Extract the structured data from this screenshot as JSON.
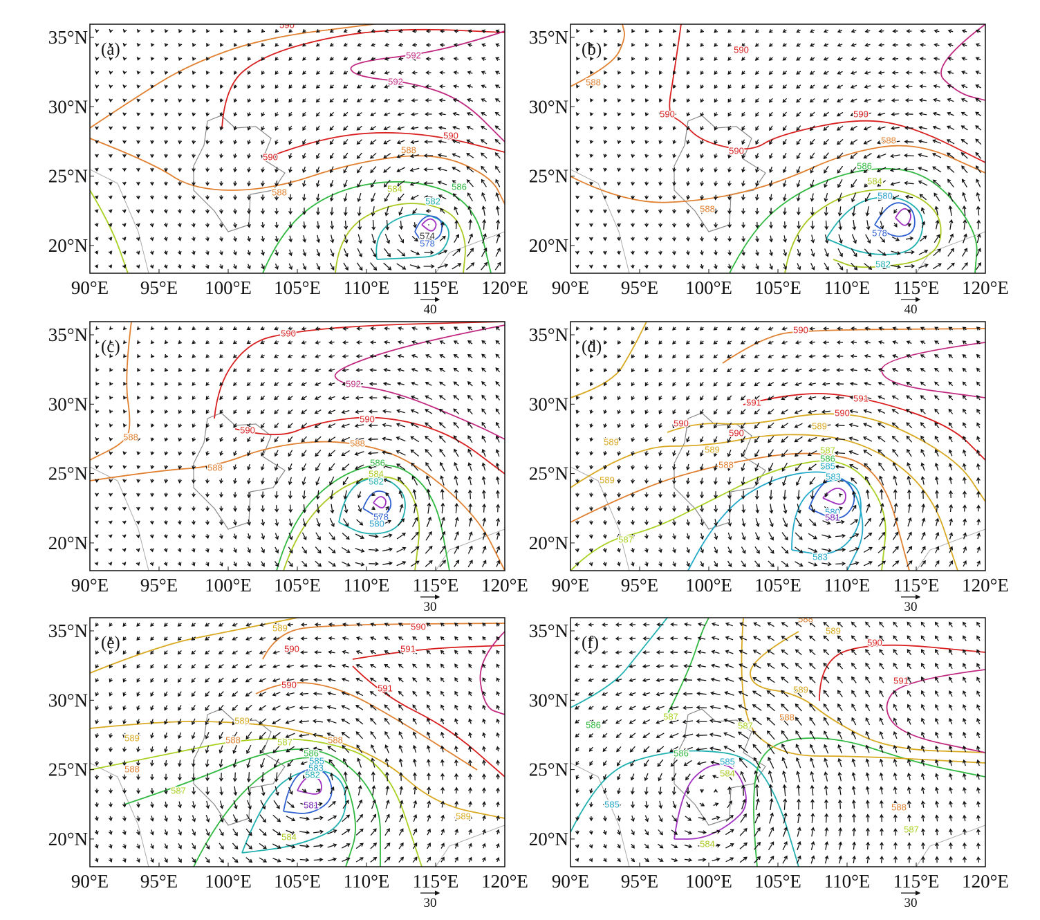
{
  "x_ticks": [
    "90°E",
    "95°E",
    "100°E",
    "105°E",
    "110°E",
    "115°E",
    "120°E"
  ],
  "y_ticks": [
    "35°N",
    "30°N",
    "25°N",
    "20°N"
  ],
  "level_colors": {
    "576": "#a030c0",
    "578": "#2f60d0",
    "580": "#2aa0d0",
    "581": "#7020b0",
    "582": "#20b0b0",
    "583": "#20a8c8",
    "584": "#a8c820",
    "585": "#20a8c8",
    "586": "#30b840",
    "587": "#a8d020",
    "588": "#e08030",
    "589": "#d8a820",
    "590": "#d82020",
    "591": "#d81a1a",
    "592": "#c02880"
  },
  "panels": [
    {
      "label": "(a)",
      "scale": "40",
      "contour_labels": [
        "590",
        "592",
        "592",
        "590",
        "590",
        "588",
        "588",
        "584",
        "586",
        "582",
        "574",
        "578"
      ]
    },
    {
      "label": "(b)",
      "scale": "40",
      "contour_labels": [
        "590",
        "588",
        "590",
        "590",
        "590",
        "588",
        "586",
        "588",
        "584",
        "580",
        "582",
        "578"
      ]
    },
    {
      "label": "(c)",
      "scale": "30",
      "contour_labels": [
        "590",
        "592",
        "590",
        "590",
        "588",
        "588",
        "588",
        "586",
        "584",
        "582",
        "578",
        "580"
      ]
    },
    {
      "label": "(d)",
      "scale": "30",
      "contour_labels": [
        "590",
        "591",
        "591",
        "590",
        "589",
        "590",
        "590",
        "589",
        "589",
        "588",
        "587",
        "586",
        "585",
        "589",
        "583",
        "580",
        "581",
        "587",
        "583"
      ]
    },
    {
      "label": "(e)",
      "scale": "30",
      "contour_labels": [
        "589",
        "590",
        "590",
        "591",
        "590",
        "591",
        "589",
        "589",
        "588",
        "587",
        "588",
        "586",
        "585",
        "583",
        "588",
        "587",
        "582",
        "581",
        "589",
        "584"
      ]
    },
    {
      "label": "(f)",
      "scale": "30",
      "contour_labels": [
        "588",
        "589",
        "590",
        "591",
        "589",
        "587",
        "587",
        "588",
        "586",
        "586",
        "585",
        "584",
        "585",
        "584",
        "588",
        "587"
      ]
    }
  ]
}
